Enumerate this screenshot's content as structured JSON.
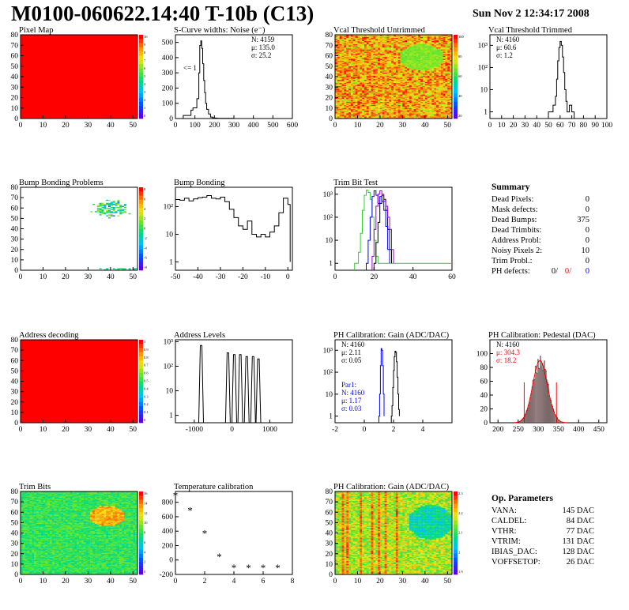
{
  "header": {
    "title": "M0100-060622.14:40 T-10b (C13)",
    "date": "Sun Nov  2 12:34:17 2008"
  },
  "colors": {
    "red": "#ff0000",
    "orange": "#ff7b00",
    "yellow": "#f0e010",
    "green": "#33cc33",
    "lightgreen": "#88ee44",
    "blue": "#0000ff",
    "purple": "#9900cc",
    "cyan": "#00c8c8",
    "histogram": "#000000",
    "fit": "#ff0000"
  },
  "chart_data": [
    {
      "id": "pixel-map",
      "type": "heatmap",
      "title": "Pixel Map",
      "xlim": [
        0,
        52
      ],
      "ylim": [
        0,
        80
      ],
      "xticks": [
        "0",
        "10",
        "20",
        "30",
        "40",
        "50"
      ],
      "yticks": [
        "0",
        "10",
        "20",
        "30",
        "40",
        "50",
        "60",
        "70",
        "80"
      ],
      "palette_ticks": [
        "10",
        "9",
        "8",
        "7",
        "6",
        "5",
        "4",
        "3",
        "2",
        "1",
        "0"
      ],
      "fill_value": 10,
      "note": "all pixels responding"
    },
    {
      "id": "scurve-noise",
      "type": "line",
      "title": "S-Curve widths: Noise (e⁻)",
      "xlim": [
        0,
        600
      ],
      "ylim": [
        0,
        550
      ],
      "xticks": [
        "0",
        "100",
        "200",
        "300",
        "400",
        "500",
        "600"
      ],
      "yticks": [
        "0",
        "100",
        "200",
        "300",
        "400",
        "500"
      ],
      "annotation": "<= 1",
      "stats": [
        "N: 4159",
        "μ: 135.0",
        "σ: 25.2"
      ],
      "series": [
        {
          "x": [
            40,
            60,
            80,
            90,
            100,
            110,
            120,
            125,
            130,
            135,
            140,
            145,
            150,
            155,
            160,
            170,
            180,
            190,
            200,
            210,
            220,
            250,
            300,
            600
          ],
          "y": [
            20,
            20,
            55,
            70,
            70,
            130,
            300,
            480,
            510,
            460,
            360,
            250,
            170,
            100,
            60,
            30,
            10,
            5,
            3,
            2,
            1,
            1,
            0,
            0
          ]
        }
      ]
    },
    {
      "id": "vcal-untrimmed",
      "type": "heatmap",
      "title": "Vcal Threshold Untrimmed",
      "xlim": [
        0,
        52
      ],
      "ylim": [
        0,
        80
      ],
      "xticks": [
        "0",
        "10",
        "20",
        "30",
        "40",
        "50"
      ],
      "yticks": [
        "0",
        "10",
        "20",
        "30",
        "40",
        "50",
        "60",
        "70",
        "80"
      ],
      "palette_ticks": [
        "100",
        "80",
        "60",
        "40",
        "20"
      ],
      "background_range": [
        60,
        95
      ],
      "blob": {
        "x": 38,
        "y": 58,
        "r": 10,
        "value": 40
      }
    },
    {
      "id": "vcal-trimmed",
      "type": "line",
      "title": "Vcal Threshold Trimmed",
      "log_y": true,
      "xlim": [
        0,
        100
      ],
      "ylim": [
        0.5,
        3000
      ],
      "xticks": [
        "0",
        "10",
        "20",
        "30",
        "40",
        "50",
        "60",
        "70",
        "80",
        "90",
        "100"
      ],
      "yticks": [
        "1",
        "10",
        "10²",
        "10³"
      ],
      "stats": [
        "N: 4160",
        "μ: 60.6",
        "σ:  1.2"
      ],
      "series": [
        {
          "x": [
            50,
            52,
            54,
            56,
            57,
            58,
            59,
            60,
            61,
            62,
            63,
            64,
            65,
            66,
            68,
            70,
            72,
            100
          ],
          "y": [
            1,
            1,
            2,
            5,
            30,
            200,
            800,
            1500,
            1000,
            300,
            60,
            10,
            3,
            1,
            2,
            1,
            0,
            0
          ]
        }
      ]
    },
    {
      "id": "bump-problems",
      "type": "heatmap",
      "title": "Bump Bonding Problems",
      "xlim": [
        0,
        52
      ],
      "ylim": [
        0,
        80
      ],
      "xticks": [
        "0",
        "10",
        "20",
        "30",
        "40",
        "50"
      ],
      "yticks": [
        "0",
        "10",
        "20",
        "30",
        "40",
        "50",
        "60",
        "70",
        "80"
      ],
      "palette_ticks": [
        "8",
        "6",
        "4",
        "2",
        "0",
        "-2",
        "-4",
        "-6",
        "-8"
      ],
      "note": "scattered failing bumps near upper right corner and bottom edge"
    },
    {
      "id": "bump-bonding",
      "type": "line",
      "title": "Bump Bonding",
      "log_y": true,
      "xlim": [
        -50,
        2
      ],
      "ylim": [
        0.5,
        500
      ],
      "xticks": [
        "-50",
        "-40",
        "-30",
        "-20",
        "-10",
        "0"
      ],
      "yticks": [
        "1",
        "10",
        "10²"
      ],
      "series": [
        {
          "x": [
            -50,
            -48,
            -46,
            -44,
            -42,
            -40,
            -38,
            -36,
            -34,
            -32,
            -30,
            -28,
            -26,
            -24,
            -22,
            -20,
            -18,
            -16,
            -14,
            -12,
            -10,
            -8,
            -6,
            -4,
            -2,
            0,
            1
          ],
          "y": [
            180,
            170,
            200,
            160,
            190,
            210,
            220,
            250,
            200,
            190,
            220,
            150,
            80,
            40,
            20,
            15,
            30,
            10,
            8,
            10,
            8,
            12,
            20,
            60,
            200,
            120,
            1
          ]
        }
      ]
    },
    {
      "id": "trim-bit-test",
      "type": "line",
      "title": "Trim Bit Test",
      "log_y": true,
      "xlim": [
        0,
        60
      ],
      "ylim": [
        0.5,
        2000
      ],
      "xticks": [
        "0",
        "20",
        "40",
        "60"
      ],
      "yticks": [
        "1",
        "10",
        "10²",
        "10³"
      ],
      "series": [
        {
          "color": "green",
          "x": [
            10,
            12,
            13,
            14,
            15,
            16,
            17,
            18,
            19,
            20,
            21,
            22,
            60
          ],
          "y": [
            1,
            3,
            20,
            200,
            900,
            1500,
            1200,
            600,
            100,
            10,
            2,
            1,
            1
          ]
        },
        {
          "color": "black",
          "x": [
            20,
            21,
            22,
            23,
            24,
            25,
            26,
            27,
            28,
            29
          ],
          "y": [
            1,
            8,
            60,
            400,
            900,
            600,
            200,
            30,
            4,
            1
          ]
        },
        {
          "color": "blue",
          "x": [
            16,
            17,
            18,
            19,
            20,
            21,
            22,
            23,
            24,
            25,
            26,
            27,
            28
          ],
          "y": [
            1,
            10,
            100,
            800,
            1400,
            900,
            400,
            800,
            500,
            200,
            40,
            4,
            1
          ]
        },
        {
          "color": "purple",
          "x": [
            19,
            20,
            21,
            22,
            23,
            24,
            25,
            26,
            27,
            28,
            29,
            30
          ],
          "y": [
            2,
            30,
            300,
            1000,
            1400,
            1000,
            500,
            300,
            100,
            30,
            4,
            1
          ]
        }
      ]
    },
    {
      "id": "address-decoding",
      "type": "heatmap",
      "title": "Address decoding",
      "xlim": [
        0,
        52
      ],
      "ylim": [
        0,
        80
      ],
      "xticks": [
        "0",
        "10",
        "20",
        "30",
        "40",
        "50"
      ],
      "yticks": [
        "0",
        "10",
        "20",
        "30",
        "40",
        "50",
        "60",
        "70",
        "80"
      ],
      "palette_ticks": [
        "1",
        "0.9",
        "0.8",
        "0.7",
        "0.6",
        "0.5",
        "0.4",
        "0.3",
        "0.2",
        "0.1",
        "0"
      ],
      "fill_value": 1
    },
    {
      "id": "address-levels",
      "type": "line",
      "title": "Address Levels",
      "log_y": true,
      "xlim": [
        -1500,
        1600
      ],
      "ylim": [
        0.5,
        1200
      ],
      "xticks": [
        "-1000",
        "0",
        "1000"
      ],
      "yticks": [
        "1",
        "10",
        "10²",
        "10³"
      ],
      "peaks": [
        {
          "x": -820,
          "h": 700
        },
        {
          "x": -110,
          "h": 350
        },
        {
          "x": 60,
          "h": 300
        },
        {
          "x": 220,
          "h": 300
        },
        {
          "x": 390,
          "h": 250
        },
        {
          "x": 560,
          "h": 250
        },
        {
          "x": 700,
          "h": 200
        }
      ]
    },
    {
      "id": "ph-gain",
      "type": "line",
      "title": "PH Calibration: Gain (ADC/DAC)",
      "log_y": true,
      "xlim": [
        -2,
        6
      ],
      "ylim": [
        0.5,
        3000
      ],
      "xticks": [
        "-2",
        "0",
        "2",
        "4"
      ],
      "yticks": [
        "1",
        "10",
        "10²",
        "10³"
      ],
      "stats": [
        "N: 4160",
        "μ: 2.11",
        "σ: 0.05"
      ],
      "stats2": [
        "Par1:",
        "N: 4160",
        "μ: 1.17",
        "σ: 0.03"
      ],
      "series": [
        {
          "color": "black",
          "x": [
            1.85,
            1.9,
            1.95,
            2.0,
            2.05,
            2.1,
            2.15,
            2.2,
            2.25,
            2.3,
            2.35,
            2.4
          ],
          "y": [
            1,
            3,
            20,
            120,
            500,
            900,
            800,
            300,
            60,
            10,
            2,
            1
          ]
        },
        {
          "color": "blue",
          "x": [
            1.0,
            1.05,
            1.1,
            1.15,
            1.2,
            1.25,
            1.3,
            1.35
          ],
          "y": [
            1,
            10,
            200,
            1200,
            1000,
            200,
            10,
            1
          ]
        }
      ]
    },
    {
      "id": "ph-pedestal",
      "type": "bar",
      "title": "PH Calibration: Pedestal (DAC)",
      "xlim": [
        180,
        470
      ],
      "ylim": [
        0,
        120
      ],
      "xticks": [
        "200",
        "250",
        "300",
        "350",
        "400",
        "450"
      ],
      "yticks": [
        "0",
        "20",
        "40",
        "60",
        "80",
        "100"
      ],
      "stats": [
        "N: 4160",
        "μ: 304.3",
        "σ: 18.2"
      ],
      "fit": {
        "mean": 304.3,
        "sigma": 18.2,
        "amplitude": 90
      },
      "cut_lines": [
        265,
        345
      ]
    },
    {
      "id": "trim-bits",
      "type": "heatmap",
      "title": "Trim Bits",
      "xlim": [
        0,
        52
      ],
      "ylim": [
        0,
        80
      ],
      "xticks": [
        "0",
        "10",
        "20",
        "30",
        "40",
        "50"
      ],
      "yticks": [
        "0",
        "10",
        "20",
        "30",
        "40",
        "50",
        "60",
        "70",
        "80"
      ],
      "palette_ticks": [
        "16",
        "14",
        "12",
        "10",
        "8",
        "6",
        "4",
        "2",
        "0"
      ],
      "background_range": [
        5,
        9
      ],
      "blob": {
        "x": 38,
        "y": 56,
        "r": 8,
        "value": 12
      }
    },
    {
      "id": "temperature-calibration",
      "type": "scatter",
      "title": "Temperature calibration",
      "xlim": [
        0,
        8
      ],
      "ylim": [
        -200,
        950
      ],
      "xticks": [
        "0",
        "2",
        "4",
        "6",
        "8"
      ],
      "yticks": [
        "-200",
        "0",
        "200",
        "400",
        "600",
        "800"
      ],
      "x": [
        0,
        1,
        2,
        3,
        4,
        5,
        6,
        7
      ],
      "y": [
        890,
        680,
        365,
        40,
        -115,
        -115,
        -115,
        -115
      ]
    },
    {
      "id": "ph-gain-map",
      "type": "heatmap",
      "title": "PH Calibration: Gain (ADC/DAC)",
      "xlim": [
        0,
        52
      ],
      "ylim": [
        0,
        80
      ],
      "xticks": [
        "0",
        "10",
        "20",
        "30",
        "40",
        "50"
      ],
      "yticks": [
        "0",
        "10",
        "20",
        "30",
        "40",
        "50",
        "60",
        "70",
        "80"
      ],
      "palette_ticks": [
        "2.3",
        "2.2",
        "2.1",
        "2",
        "1.9"
      ],
      "background_range": [
        2.05,
        2.2
      ],
      "stripe_columns": [
        3,
        5,
        11,
        16,
        19,
        22,
        27
      ],
      "blob": {
        "x": 42,
        "y": 50,
        "r": 10,
        "value": 1.98
      }
    }
  ],
  "summary": {
    "title": "Summary",
    "rows": [
      {
        "label": "Dead Pixels:",
        "value": "0"
      },
      {
        "label": "Mask defects:",
        "value": "0"
      },
      {
        "label": "Dead Bumps:",
        "value": "375"
      },
      {
        "label": "Dead Trimbits:",
        "value": "0"
      },
      {
        "label": "Address Probl:",
        "value": "0"
      },
      {
        "label": "Noisy Pixels 2:",
        "value": "10"
      },
      {
        "label": "Trim Probl.:",
        "value": "0"
      }
    ],
    "ph_defects": {
      "label": "PH defects:",
      "values": [
        "0/",
        "0/",
        "0"
      ]
    }
  },
  "op_parameters": {
    "title": "Op. Parameters",
    "rows": [
      {
        "label": "VANA:",
        "value": "145 DAC"
      },
      {
        "label": "CALDEL:",
        "value": "84 DAC"
      },
      {
        "label": "VTHR:",
        "value": "77 DAC"
      },
      {
        "label": "VTRIM:",
        "value": "131 DAC"
      },
      {
        "label": "IBIAS_DAC:",
        "value": "128 DAC"
      },
      {
        "label": "VOFFSETOP:",
        "value": "26 DAC"
      }
    ]
  }
}
